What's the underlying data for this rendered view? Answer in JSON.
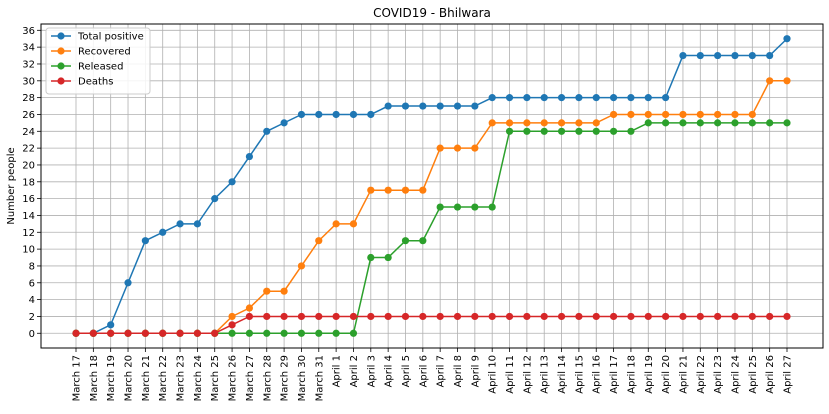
{
  "chart_data": {
    "type": "line",
    "title": "COVID19 - Bhilwara",
    "xlabel": "",
    "ylabel": "Number people",
    "ylim": [
      -1.75,
      36.75
    ],
    "yticks": [
      0,
      2,
      4,
      6,
      8,
      10,
      12,
      14,
      16,
      18,
      20,
      22,
      24,
      26,
      28,
      30,
      32,
      34,
      36
    ],
    "grid": true,
    "legend_position": "top-left",
    "categories": [
      "March 17",
      "March 18",
      "March 19",
      "March 20",
      "March 21",
      "March 22",
      "March 23",
      "March 24",
      "March 25",
      "March 26",
      "March 27",
      "March 28",
      "March 29",
      "March 30",
      "March 31",
      "April 1",
      "April 2",
      "April 3",
      "April 4",
      "April 5",
      "April 6",
      "April 7",
      "April 8",
      "April 9",
      "April 10",
      "April 11",
      "April 12",
      "April 13",
      "April 14",
      "April 15",
      "April 16",
      "April 17",
      "April 18",
      "April 19",
      "April 20",
      "April 21",
      "April 22",
      "April 23",
      "April 24",
      "April 25",
      "April 26",
      "April 27"
    ],
    "series": [
      {
        "name": "Total positive",
        "color": "#1f77b4",
        "values": [
          0,
          0,
          1,
          6,
          11,
          12,
          13,
          13,
          16,
          18,
          21,
          24,
          25,
          26,
          26,
          26,
          26,
          26,
          27,
          27,
          27,
          27,
          27,
          27,
          28,
          28,
          28,
          28,
          28,
          28,
          28,
          28,
          28,
          28,
          28,
          33,
          33,
          33,
          33,
          33,
          33,
          35
        ]
      },
      {
        "name": "Recovered",
        "color": "#ff7f0e",
        "values": [
          0,
          0,
          0,
          0,
          0,
          0,
          0,
          0,
          0,
          2,
          3,
          5,
          5,
          8,
          11,
          13,
          13,
          17,
          17,
          17,
          17,
          22,
          22,
          22,
          25,
          25,
          25,
          25,
          25,
          25,
          25,
          26,
          26,
          26,
          26,
          26,
          26,
          26,
          26,
          26,
          30,
          30
        ]
      },
      {
        "name": "Released",
        "color": "#2ca02c",
        "values": [
          0,
          0,
          0,
          0,
          0,
          0,
          0,
          0,
          0,
          0,
          0,
          0,
          0,
          0,
          0,
          0,
          0,
          9,
          9,
          11,
          11,
          15,
          15,
          15,
          15,
          24,
          24,
          24,
          24,
          24,
          24,
          24,
          24,
          25,
          25,
          25,
          25,
          25,
          25,
          25,
          25,
          25
        ]
      },
      {
        "name": "Deaths",
        "color": "#d62728",
        "values": [
          0,
          0,
          0,
          0,
          0,
          0,
          0,
          0,
          0,
          1,
          2,
          2,
          2,
          2,
          2,
          2,
          2,
          2,
          2,
          2,
          2,
          2,
          2,
          2,
          2,
          2,
          2,
          2,
          2,
          2,
          2,
          2,
          2,
          2,
          2,
          2,
          2,
          2,
          2,
          2,
          2,
          2
        ]
      }
    ]
  }
}
